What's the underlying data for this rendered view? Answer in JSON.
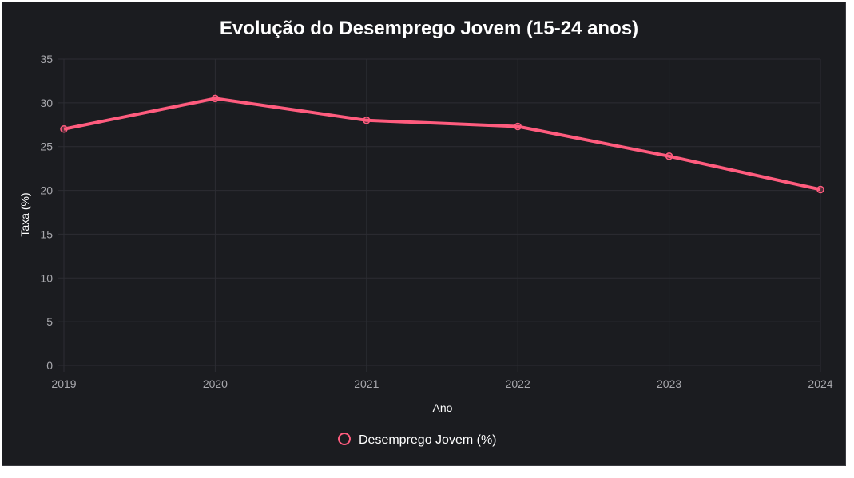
{
  "colors": {
    "background": "#1b1c20",
    "line": "#ff5c7e",
    "grid": "#2c2d33",
    "text": "#ffffff",
    "tick": "#a8a8ad"
  },
  "chart_data": {
    "type": "line",
    "title": "Evolução do Desemprego Jovem (15-24 anos)",
    "xlabel": "Ano",
    "ylabel": "Taxa (%)",
    "categories": [
      "2019",
      "2020",
      "2021",
      "2022",
      "2023",
      "2024"
    ],
    "ylim": [
      0,
      35
    ],
    "yticks": [
      0,
      5,
      10,
      15,
      20,
      25,
      30,
      35
    ],
    "grid": true,
    "legend_position": "bottom",
    "series": [
      {
        "name": "Desemprego Jovem (%)",
        "values": [
          27.0,
          30.5,
          28.0,
          27.3,
          23.9,
          20.1
        ]
      }
    ]
  }
}
